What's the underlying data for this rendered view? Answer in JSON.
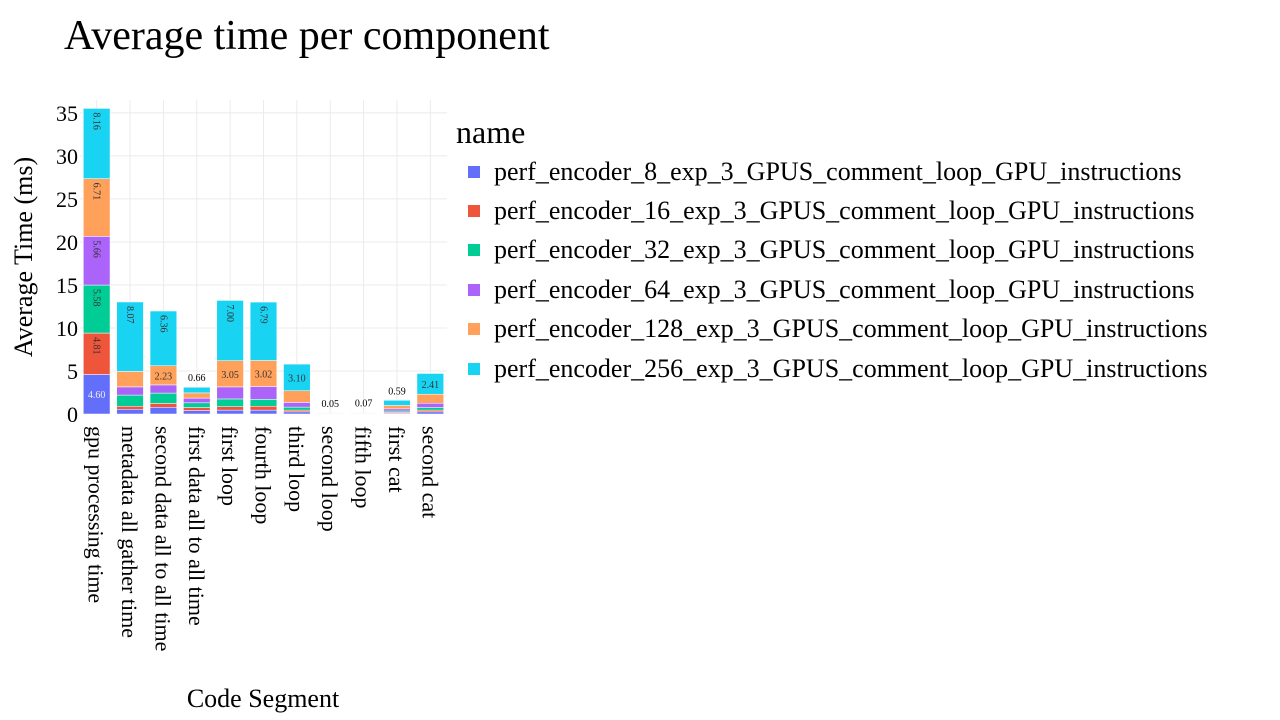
{
  "title": "Average time per component",
  "chart_data": {
    "type": "bar",
    "stacked": true,
    "title": "Average time per component",
    "xlabel": "Code Segment",
    "ylabel": "Average Time (ms)",
    "ylim": [
      0,
      36.5
    ],
    "yticks": [
      0,
      5,
      10,
      15,
      20,
      25,
      30,
      35
    ],
    "grid": true,
    "legend_title": "name",
    "legend_position": "right",
    "categories": [
      "gpu processing time",
      "metadata all gather time",
      "second data all to all time",
      "first data all to all time",
      "first loop",
      "fourth loop",
      "third loop",
      "second loop",
      "fifth loop",
      "first cat",
      "second cat"
    ],
    "series": [
      {
        "name": "perf_encoder_8_exp_3_GPUS_comment_loop_GPU_instructions",
        "color": "#636efa",
        "values": [
          4.6,
          0.55,
          0.78,
          0.4,
          0.45,
          0.45,
          0.25,
          0.01,
          0.01,
          0.1,
          0.25
        ],
        "labels": [
          "4.60",
          "",
          "",
          "",
          "",
          "",
          "",
          "",
          "",
          "",
          ""
        ]
      },
      {
        "name": "perf_encoder_16_exp_3_GPUS_comment_loop_GPU_instructions",
        "color": "#ef553b",
        "values": [
          4.81,
          0.35,
          0.45,
          0.35,
          0.4,
          0.45,
          0.2,
          0.01,
          0.01,
          0.1,
          0.2
        ],
        "labels": [
          "4.81",
          "",
          "",
          "",
          "",
          "",
          "",
          "",
          "",
          "",
          ""
        ]
      },
      {
        "name": "perf_encoder_32_exp_3_GPUS_comment_loop_GPU_instructions",
        "color": "#00cc96",
        "values": [
          5.58,
          1.3,
          1.2,
          0.55,
          0.9,
          0.8,
          0.35,
          0.01,
          0.01,
          0.15,
          0.3
        ],
        "labels": [
          "5.58",
          "",
          "",
          "",
          "",
          "",
          "",
          "",
          "",
          "",
          ""
        ]
      },
      {
        "name": "perf_encoder_64_exp_3_GPUS_comment_loop_GPU_instructions",
        "color": "#ab63fa",
        "values": [
          5.66,
          0.95,
          0.95,
          0.55,
          1.4,
          1.5,
          0.55,
          0.02,
          0.02,
          0.25,
          0.5
        ],
        "labels": [
          "5.66",
          "",
          "",
          "",
          "",
          "",
          "",
          "",
          "",
          "",
          ""
        ]
      },
      {
        "name": "perf_encoder_128_exp_3_GPUS_comment_loop_GPU_instructions",
        "color": "#ffa15a",
        "values": [
          6.71,
          1.8,
          2.23,
          0.6,
          3.05,
          3.02,
          1.35,
          0.03,
          0.03,
          0.4,
          1.05
        ],
        "labels": [
          "6.71",
          "",
          "2.23",
          "",
          "3.05",
          "3.02",
          "",
          "",
          "",
          "",
          ""
        ]
      },
      {
        "name": "perf_encoder_256_exp_3_GPUS_comment_loop_GPU_instructions",
        "color": "#19d3f3",
        "values": [
          8.16,
          8.07,
          6.36,
          0.66,
          7.0,
          6.79,
          3.1,
          0.05,
          0.07,
          0.59,
          2.41
        ],
        "labels": [
          "8.16",
          "8.07",
          "6.36",
          "0.66",
          "7.00",
          "6.79",
          "3.10",
          "0.05",
          "0.07",
          "0.59",
          "2.41"
        ]
      }
    ]
  }
}
